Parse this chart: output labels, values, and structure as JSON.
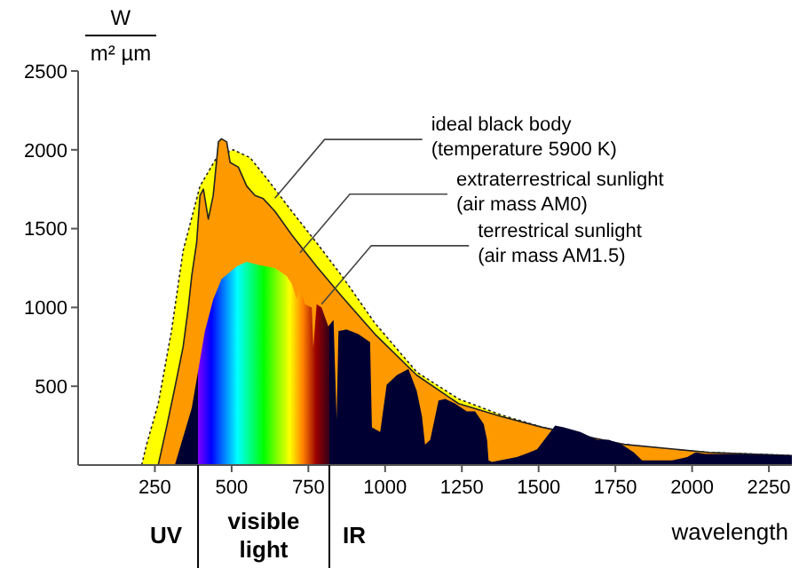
{
  "chart_data": {
    "type": "area",
    "ylabel": "W/m² µm",
    "xlabel": "wavelength",
    "xlim": [
      0,
      2325
    ],
    "ylim": [
      0,
      2500
    ],
    "xticks": [
      250,
      500,
      750,
      1000,
      1250,
      1500,
      1750,
      2000,
      2250
    ],
    "yticks": [
      500,
      1000,
      1500,
      2000,
      2500
    ],
    "grid": false,
    "series": [
      {
        "color": "#ffff00",
        "line_style": "dotted",
        "x": [
          207,
          223,
          261,
          304,
          342,
          397,
          451,
          505,
          560,
          614,
          696,
          777,
          859,
          967,
          1103,
          1239,
          1375,
          1511,
          1647,
          1783,
          1918,
          2054,
          2190,
          2325
        ],
        "values": [
          0,
          130,
          390,
          850,
          1360,
          1770,
          1950,
          2000,
          1950,
          1820,
          1610,
          1410,
          1200,
          900,
          590,
          420,
          320,
          240,
          170,
          130,
          100,
          80,
          70,
          60
        ]
      },
      {
        "color": "#ff9900",
        "line_style": "solid",
        "x": [
          261,
          288,
          315,
          342,
          359,
          370,
          386,
          397,
          408,
          424,
          440,
          457,
          467,
          484,
          495,
          522,
          549,
          576,
          603,
          641,
          696,
          777,
          859,
          967,
          1103,
          1239,
          1375,
          1511,
          1783,
          2054,
          2325
        ],
        "values": [
          0,
          240,
          490,
          750,
          1000,
          1200,
          1410,
          1710,
          1750,
          1560,
          1710,
          2050,
          2070,
          2050,
          1920,
          1890,
          1770,
          1710,
          1690,
          1610,
          1460,
          1260,
          1070,
          830,
          570,
          390,
          310,
          240,
          130,
          80,
          60
        ]
      },
      {
        "color": "#000033",
        "x": [
          315,
          370,
          413,
          440,
          467,
          516,
          549,
          587,
          641,
          679,
          696,
          712,
          723,
          739,
          761,
          766,
          777,
          793,
          815,
          832,
          842,
          848,
          875,
          913,
          951,
          957,
          984,
          1005,
          1038,
          1076,
          1103,
          1120,
          1130,
          1147,
          1174,
          1196,
          1228,
          1266,
          1293,
          1321,
          1332,
          1337,
          1348,
          1429,
          1457,
          1495,
          1554,
          1582,
          1636,
          1690,
          1728,
          1772,
          1810,
          1837,
          1935,
          1984,
          2011,
          2043,
          2120,
          2325
        ],
        "values": [
          0,
          360,
          850,
          1050,
          1180,
          1260,
          1290,
          1270,
          1250,
          1200,
          1150,
          1050,
          1120,
          1020,
          1000,
          750,
          1020,
          1000,
          880,
          920,
          290,
          850,
          860,
          830,
          780,
          240,
          210,
          510,
          570,
          610,
          470,
          310,
          130,
          160,
          410,
          420,
          390,
          340,
          340,
          260,
          160,
          30,
          20,
          50,
          70,
          100,
          250,
          240,
          210,
          160,
          160,
          130,
          80,
          30,
          30,
          50,
          80,
          70,
          70,
          60
        ]
      }
    ],
    "annotations": [
      {
        "text": "ideal black body\n(temperature 5900 K)",
        "x": 641,
        "y": 1694
      },
      {
        "text": "extraterrestrical sunlight\n(air mass AM0)",
        "x": 723,
        "y": 1347
      },
      {
        "text": "terrestrical sunlight\n(air mass AM1.5)",
        "x": 793,
        "y": 1020
      },
      "UV",
      "visible light",
      "IR"
    ]
  }
}
